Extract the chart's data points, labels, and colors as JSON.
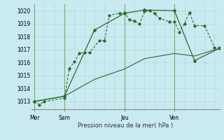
{
  "background_color": "#c8eaf0",
  "grid_color": "#b8d8d8",
  "line_color": "#2d6a2d",
  "title": "Pression niveau de la mer( hPa )",
  "ylim": [
    1012.4,
    1020.5
  ],
  "yticks": [
    1013,
    1014,
    1015,
    1016,
    1017,
    1018,
    1019,
    1020
  ],
  "xtick_labels": [
    "Mer",
    "Sam",
    "Jeu",
    "Ven"
  ],
  "xtick_positions": [
    0,
    3,
    9,
    14
  ],
  "vline_positions": [
    0,
    3,
    9,
    14
  ],
  "xlim": [
    -0.3,
    18.5
  ],
  "line1_x": [
    0,
    0.5,
    1.0,
    3.0,
    3.5,
    4.0,
    4.5,
    5.0,
    5.5,
    6.5,
    7.0,
    7.5,
    8.5,
    9.0,
    9.5,
    10.0,
    10.5,
    11.0,
    11.5,
    12.0,
    12.5,
    13.5,
    14.0,
    14.5,
    15.0,
    15.5,
    16.0,
    17.0,
    18.0,
    18.5
  ],
  "line1_y": [
    1013.0,
    1012.75,
    1013.0,
    1013.25,
    1015.55,
    1016.05,
    1016.7,
    1016.8,
    1016.75,
    1017.7,
    1017.7,
    1019.65,
    1019.8,
    1019.85,
    1019.3,
    1019.2,
    1019.0,
    1019.95,
    1020.0,
    1019.8,
    1019.4,
    1019.15,
    1019.15,
    1018.35,
    1019.0,
    1019.85,
    1018.85,
    1018.85,
    1017.15,
    1017.15
  ],
  "line2_x": [
    0,
    3,
    6,
    9,
    11,
    14,
    16,
    18.5
  ],
  "line2_y": [
    1013.0,
    1013.4,
    1018.5,
    1019.8,
    1020.05,
    1020.0,
    1016.15,
    1017.1
  ],
  "line3_x": [
    0,
    3,
    6,
    9,
    11,
    14,
    16,
    18.5
  ],
  "line3_y": [
    1013.0,
    1013.4,
    1014.7,
    1015.5,
    1016.3,
    1016.7,
    1016.5,
    1017.1
  ]
}
